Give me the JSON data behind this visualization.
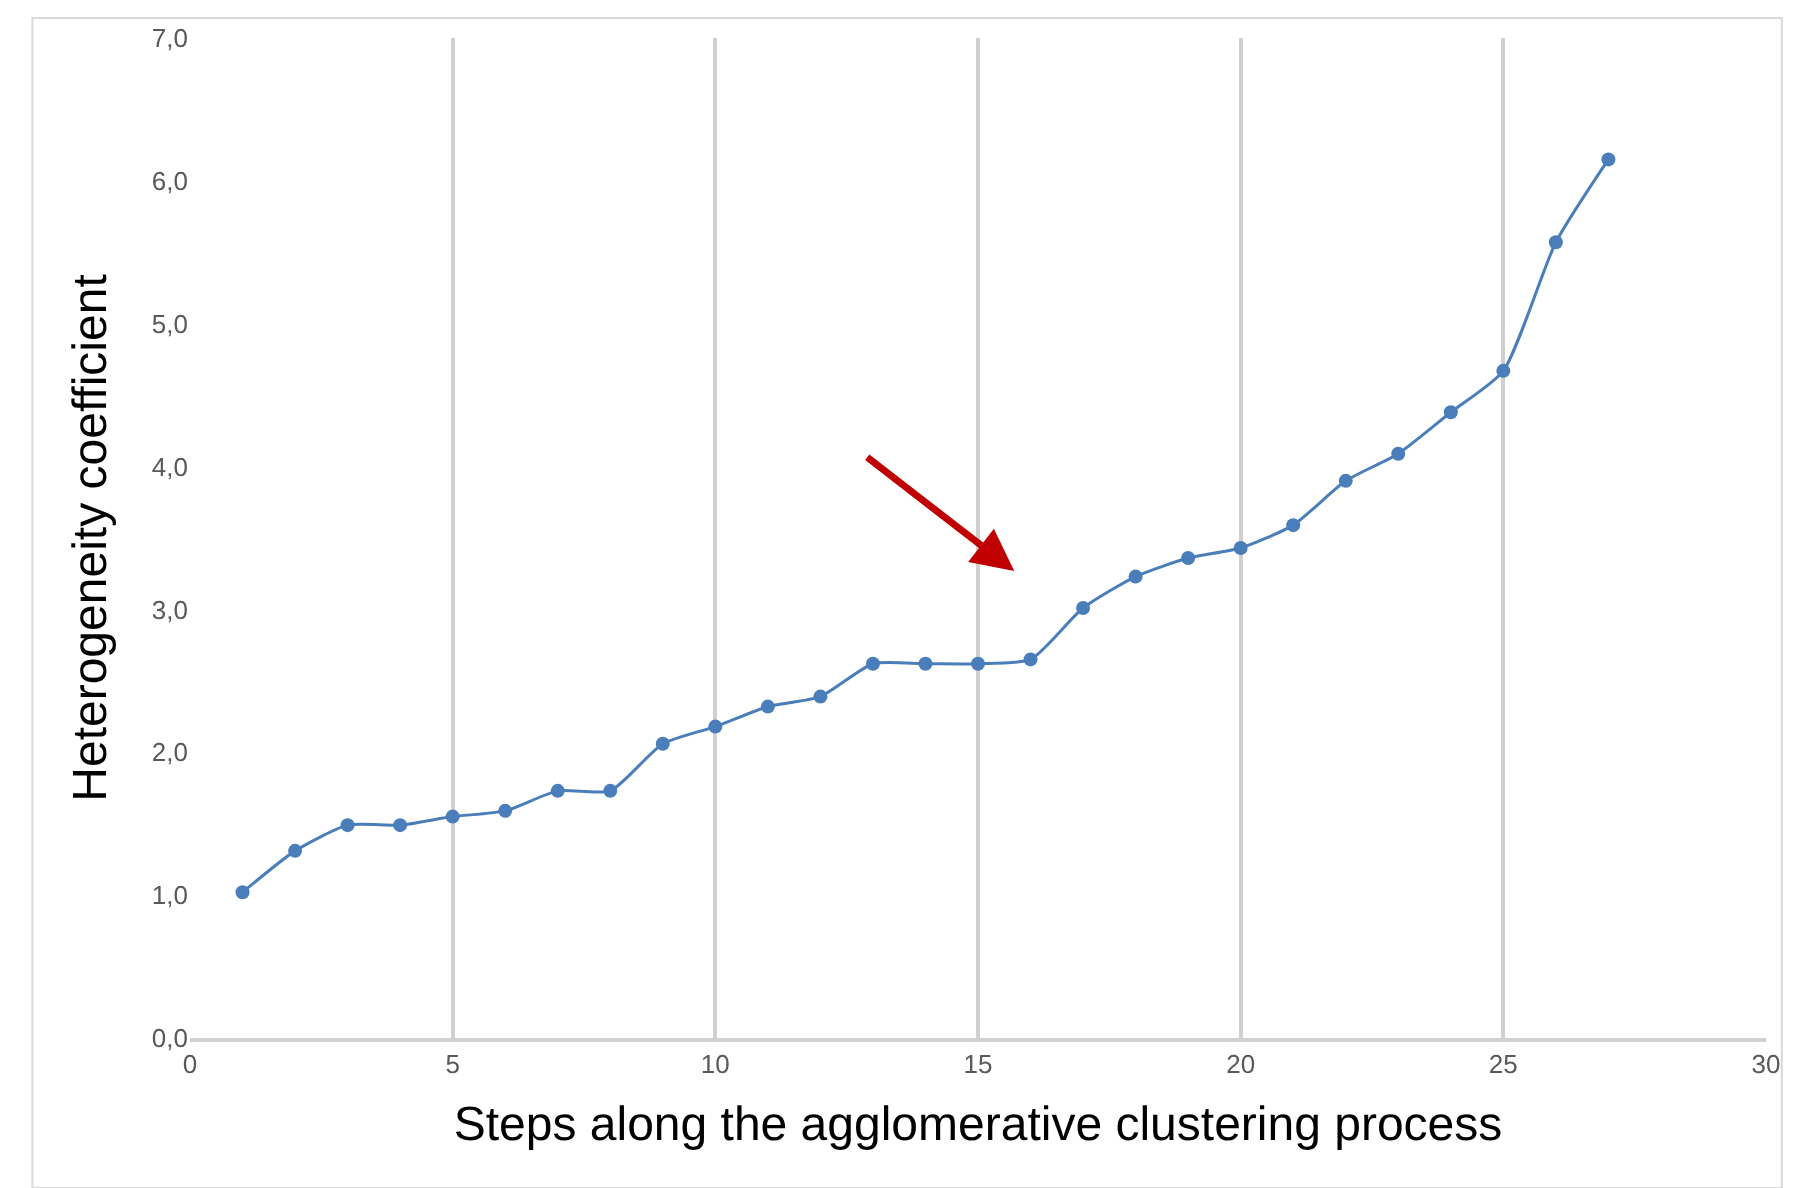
{
  "chart_data": {
    "type": "line",
    "xlabel": "Steps along the agglomerative clustering process",
    "ylabel": "Heterogeneity coefficient",
    "x": [
      1,
      2,
      3,
      4,
      5,
      6,
      7,
      8,
      9,
      10,
      11,
      12,
      13,
      14,
      15,
      16,
      17,
      18,
      19,
      20,
      21,
      22,
      23,
      24,
      25,
      26,
      27
    ],
    "series": [
      {
        "color": "#4a7ebb",
        "values": [
          1.02,
          1.31,
          1.49,
          1.49,
          1.55,
          1.59,
          1.73,
          1.73,
          2.06,
          2.18,
          2.32,
          2.39,
          2.62,
          2.62,
          2.62,
          2.65,
          3.01,
          3.23,
          3.36,
          3.43,
          3.59,
          3.9,
          4.09,
          4.38,
          4.67,
          5.57,
          6.15
        ]
      }
    ],
    "xlim": [
      0,
      30
    ],
    "xticks": [
      0,
      5,
      10,
      15,
      20,
      25,
      30
    ],
    "ylim": [
      0,
      7
    ],
    "yticks": [
      {
        "value": 0,
        "label": "0,0"
      },
      {
        "value": 1,
        "label": "1,0"
      },
      {
        "value": 2,
        "label": "2,0"
      },
      {
        "value": 3,
        "label": "3,0"
      },
      {
        "value": 4,
        "label": "4,0"
      },
      {
        "value": 5,
        "label": "5,0"
      },
      {
        "value": 6,
        "label": "6,0"
      },
      {
        "value": 7,
        "label": "7,0"
      }
    ],
    "grid": "x",
    "marker": "circle",
    "line_style": "solid"
  }
}
